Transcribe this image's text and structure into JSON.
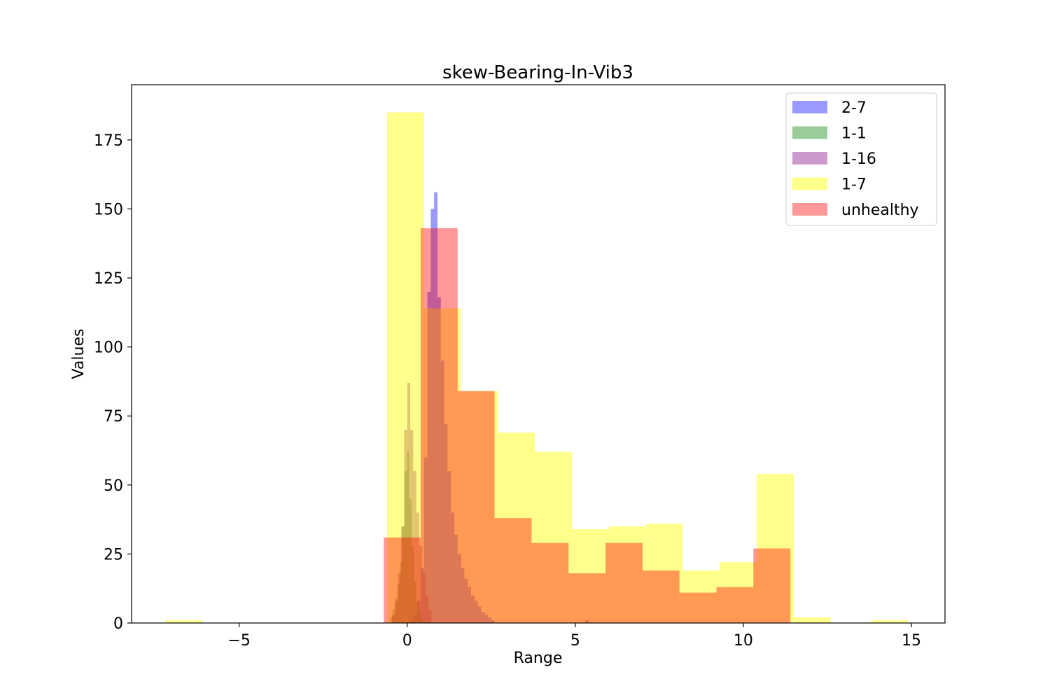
{
  "chart_data": {
    "type": "bar",
    "title": "skew-Bearing-In-Vib3",
    "xlabel": "Range",
    "ylabel": "Values",
    "xlim": [
      -8.2,
      16.0
    ],
    "ylim": [
      0,
      195
    ],
    "xticks": [
      -5,
      0,
      5,
      10,
      15
    ],
    "xtick_labels": [
      "−5",
      "0",
      "5",
      "10",
      "15"
    ],
    "yticks": [
      0,
      25,
      50,
      75,
      100,
      125,
      150,
      175
    ],
    "ytick_labels": [
      "0",
      "25",
      "50",
      "75",
      "100",
      "125",
      "150",
      "175"
    ],
    "grid": false,
    "legend_position": "top-right",
    "series": [
      {
        "name": "2-7",
        "color": "#0000ff",
        "opacity": 0.4,
        "bins": [
          [
            0.1,
            0.2,
            1
          ],
          [
            0.2,
            0.3,
            3
          ],
          [
            0.3,
            0.4,
            8
          ],
          [
            0.4,
            0.5,
            20
          ],
          [
            0.5,
            0.6,
            60
          ],
          [
            0.6,
            0.7,
            120
          ],
          [
            0.7,
            0.8,
            150
          ],
          [
            0.8,
            0.9,
            156
          ],
          [
            0.9,
            1.0,
            118
          ],
          [
            1.0,
            1.1,
            95
          ],
          [
            1.1,
            1.2,
            72
          ],
          [
            1.2,
            1.3,
            55
          ],
          [
            1.3,
            1.4,
            40
          ],
          [
            1.4,
            1.5,
            32
          ],
          [
            1.5,
            1.6,
            25
          ],
          [
            1.6,
            1.7,
            20
          ],
          [
            1.7,
            1.8,
            16
          ],
          [
            1.8,
            1.9,
            13
          ],
          [
            1.9,
            2.0,
            10
          ],
          [
            2.0,
            2.1,
            8
          ],
          [
            2.1,
            2.2,
            6
          ],
          [
            2.2,
            2.3,
            4
          ],
          [
            2.3,
            2.4,
            3
          ],
          [
            2.4,
            2.5,
            2
          ],
          [
            2.5,
            2.6,
            1
          ],
          [
            5.3,
            5.4,
            1
          ]
        ]
      },
      {
        "name": "1-1",
        "color": "#008000",
        "opacity": 0.4,
        "bins": [
          [
            -0.5,
            -0.43,
            2
          ],
          [
            -0.43,
            -0.36,
            5
          ],
          [
            -0.36,
            -0.29,
            9
          ],
          [
            -0.29,
            -0.22,
            14
          ],
          [
            -0.22,
            -0.15,
            22
          ],
          [
            -0.15,
            -0.08,
            35
          ],
          [
            -0.08,
            -0.01,
            55
          ],
          [
            -0.01,
            0.06,
            62
          ],
          [
            0.06,
            0.13,
            45
          ],
          [
            0.13,
            0.2,
            28
          ],
          [
            0.2,
            0.27,
            15
          ],
          [
            0.27,
            0.34,
            8
          ],
          [
            0.34,
            0.41,
            4
          ],
          [
            0.41,
            0.48,
            1
          ]
        ]
      },
      {
        "name": "1-16",
        "color": "#800080",
        "opacity": 0.4,
        "bins": [
          [
            -0.45,
            -0.36,
            3
          ],
          [
            -0.36,
            -0.27,
            8
          ],
          [
            -0.27,
            -0.18,
            18
          ],
          [
            -0.18,
            -0.09,
            35
          ],
          [
            -0.09,
            0.0,
            70
          ],
          [
            0.0,
            0.09,
            87
          ],
          [
            0.09,
            0.18,
            70
          ],
          [
            0.18,
            0.27,
            55
          ],
          [
            0.27,
            0.36,
            40
          ],
          [
            0.36,
            0.45,
            28
          ],
          [
            0.45,
            0.54,
            18
          ],
          [
            0.54,
            0.63,
            10
          ],
          [
            0.63,
            0.72,
            5
          ]
        ]
      },
      {
        "name": "1-7",
        "color": "#ffff00",
        "opacity": 0.45,
        "bins": [
          [
            -7.2,
            -6.1,
            1
          ],
          [
            -0.6,
            0.5,
            185
          ],
          [
            0.5,
            1.6,
            114
          ],
          [
            1.6,
            2.7,
            84
          ],
          [
            2.7,
            3.8,
            69
          ],
          [
            3.8,
            4.9,
            62
          ],
          [
            4.9,
            6.0,
            34
          ],
          [
            6.0,
            7.1,
            35
          ],
          [
            7.1,
            8.2,
            36
          ],
          [
            8.2,
            9.3,
            19
          ],
          [
            9.3,
            10.4,
            22
          ],
          [
            10.4,
            11.5,
            54
          ],
          [
            11.5,
            12.6,
            2
          ],
          [
            13.8,
            14.9,
            1
          ]
        ]
      },
      {
        "name": "unhealthy",
        "color": "#ff0000",
        "opacity": 0.4,
        "bins": [
          [
            -0.7,
            0.4,
            31
          ],
          [
            0.4,
            1.5,
            143
          ],
          [
            1.5,
            2.6,
            84
          ],
          [
            2.6,
            3.7,
            38
          ],
          [
            3.7,
            4.8,
            29
          ],
          [
            4.8,
            5.9,
            18
          ],
          [
            5.9,
            7.0,
            29
          ],
          [
            7.0,
            8.1,
            19
          ],
          [
            8.1,
            9.2,
            11
          ],
          [
            9.2,
            10.3,
            13
          ],
          [
            10.3,
            11.4,
            27
          ]
        ]
      }
    ]
  }
}
